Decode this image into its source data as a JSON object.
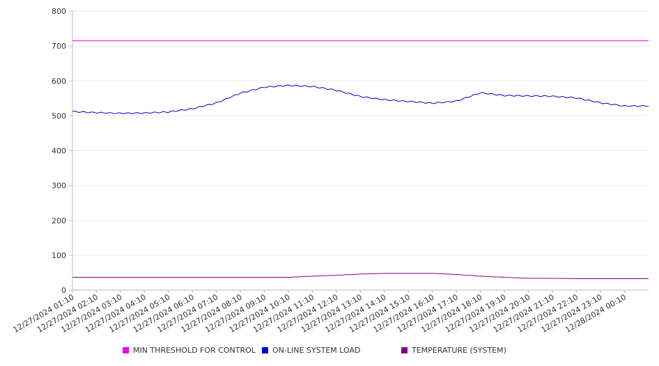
{
  "chart_data": {
    "type": "line",
    "title": "",
    "xlabel": "",
    "ylabel": "",
    "ylim": [
      0,
      800
    ],
    "yticks": [
      0,
      100,
      200,
      300,
      400,
      500,
      600,
      700,
      800
    ],
    "grid": "horizontal",
    "legend_position": "bottom",
    "x": [
      "12/27/2024 01:10",
      "12/27/2024 02:10",
      "12/27/2024 03:10",
      "12/27/2024 04:10",
      "12/27/2024 05:10",
      "12/27/2024 06:10",
      "12/27/2024 07:10",
      "12/27/2024 08:10",
      "12/27/2024 09:10",
      "12/27/2024 10:10",
      "12/27/2024 11:10",
      "12/27/2024 12:10",
      "12/27/2024 13:10",
      "12/27/2024 14:10",
      "12/27/2024 15:10",
      "12/27/2024 16:10",
      "12/27/2024 17:10",
      "12/27/2024 18:10",
      "12/27/2024 19:10",
      "12/27/2024 20:10",
      "12/27/2024 21:10",
      "12/27/2024 22:10",
      "12/27/2024 23:10",
      "12/28/2024 00:10"
    ],
    "series": [
      {
        "name": "MIN THRESHOLD FOR CONTROL",
        "color": "#ee00ee",
        "values": [
          715,
          715,
          715,
          715,
          715,
          715,
          715,
          715,
          715,
          715,
          715,
          715,
          715,
          715,
          715,
          715,
          715,
          715,
          715,
          715,
          715,
          715,
          715,
          715
        ]
      },
      {
        "name": "ON-LINE SYSTEM LOAD",
        "color": "#0000cc",
        "values": [
          512,
          509,
          507,
          508,
          511,
          520,
          537,
          565,
          582,
          587,
          584,
          573,
          555,
          546,
          541,
          536,
          542,
          566,
          558,
          557,
          556,
          551,
          537,
          528
        ]
      },
      {
        "name": "TEMPERATURE (SYSTEM)",
        "color": "#800080",
        "values": [
          37,
          37,
          37,
          37,
          37,
          37,
          37,
          37,
          37,
          37,
          40,
          43,
          46,
          48,
          48,
          48,
          45,
          40,
          37,
          34,
          34,
          33,
          33,
          33
        ]
      }
    ]
  }
}
